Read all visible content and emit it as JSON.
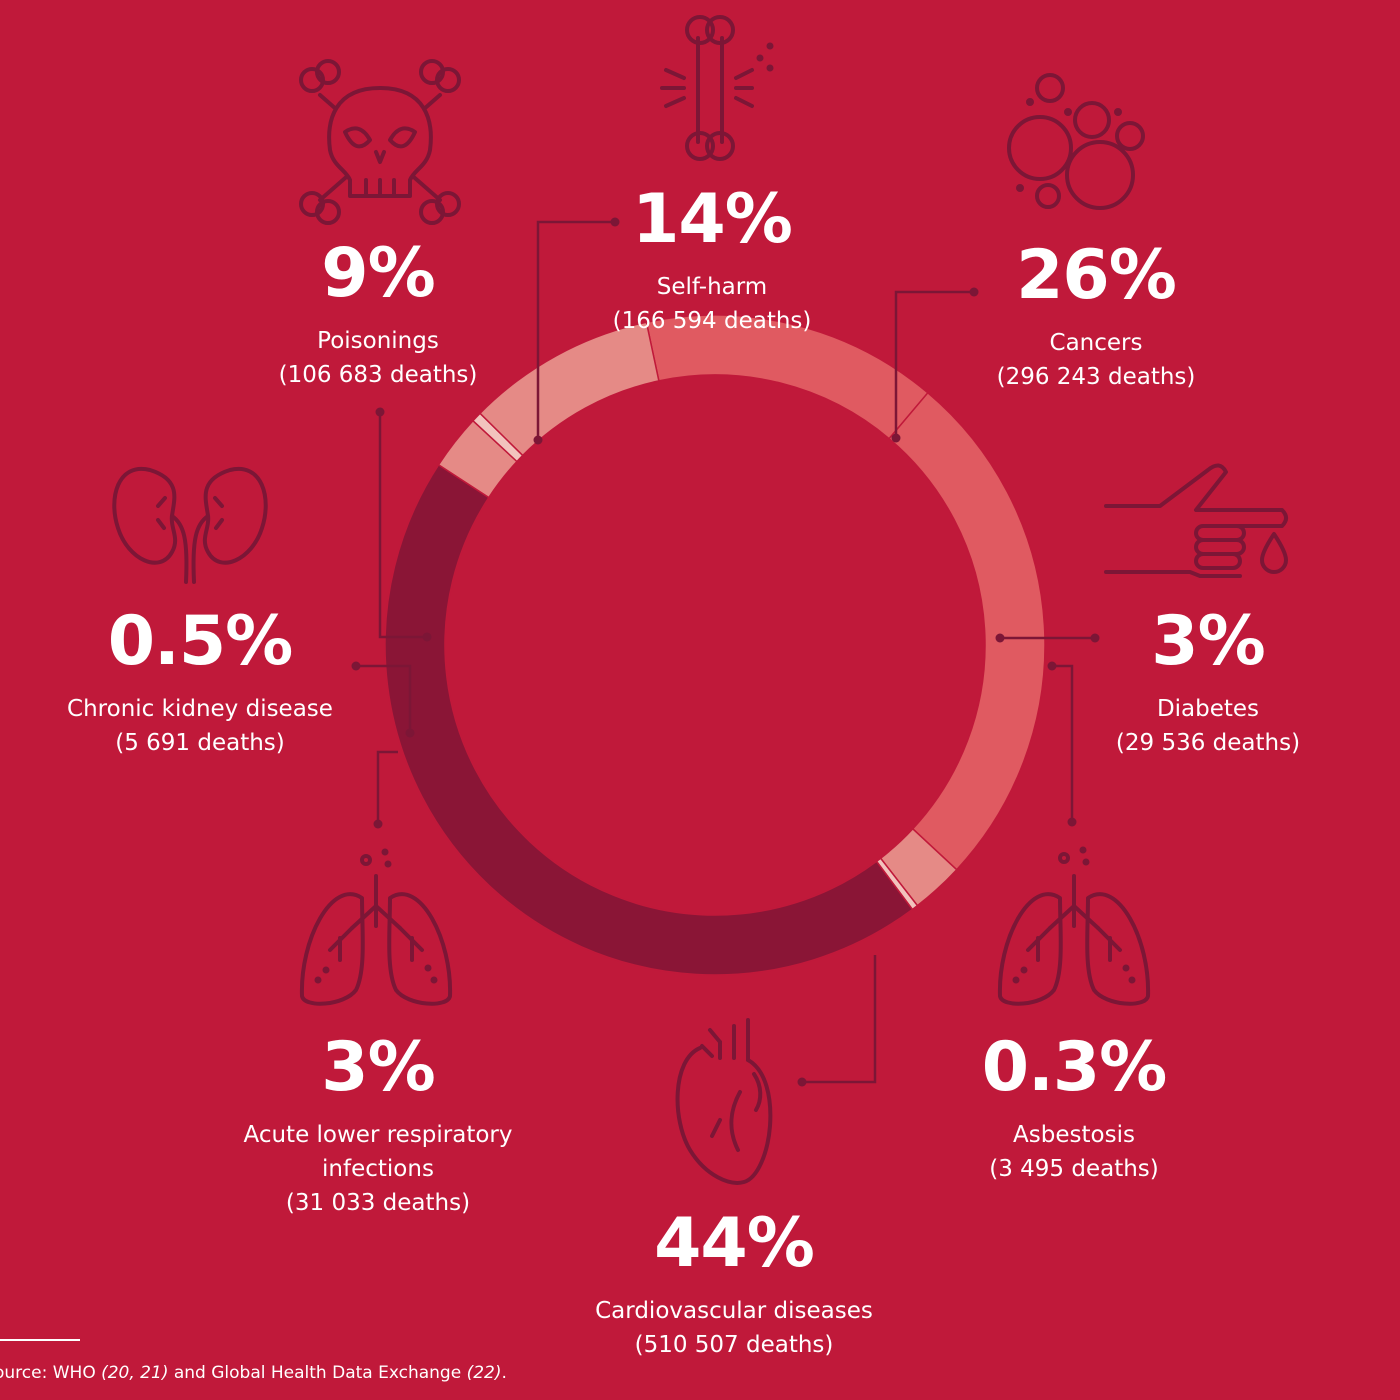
{
  "chart_data": {
    "type": "pie",
    "categories": [
      "Self-harm",
      "Cancers",
      "Diabetes",
      "Asbestosis",
      "Cardiovascular diseases",
      "Acute lower respiratory infections",
      "Chronic kidney disease",
      "Poisonings"
    ],
    "segments": [
      {
        "key": "self_harm",
        "name": "Self-harm",
        "percent_label": "14%",
        "deaths_label": "(166 594 deaths)",
        "value": 166594,
        "color": "#e05a61"
      },
      {
        "key": "cancers",
        "name": "Cancers",
        "percent_label": "26%",
        "deaths_label": "(296 243 deaths)",
        "value": 296243,
        "color": "#e05a61"
      },
      {
        "key": "diabetes",
        "name": "Diabetes",
        "percent_label": "3%",
        "deaths_label": "(29 536 deaths)",
        "value": 29536,
        "color": "#e58a86"
      },
      {
        "key": "asbestosis",
        "name": "Asbestosis",
        "percent_label": "0.3%",
        "deaths_label": "(3 495 deaths)",
        "value": 3495,
        "color": "#f2c3bd"
      },
      {
        "key": "cardiovascular",
        "name": "Cardiovascular diseases",
        "percent_label": "44%",
        "deaths_label": "(510 507 deaths)",
        "value": 510507,
        "color": "#8a1536"
      },
      {
        "key": "respiratory",
        "name": "Acute lower respiratory infections",
        "name_lines": [
          "Acute lower respiratory",
          "infections"
        ],
        "percent_label": "3%",
        "deaths_label": "(31 033 deaths)",
        "value": 31033,
        "color": "#e58a86"
      },
      {
        "key": "kidney",
        "name": "Chronic kidney disease",
        "percent_label": "0.5%",
        "deaths_label": "(5 691 deaths)",
        "value": 5691,
        "color": "#f2c3bd"
      },
      {
        "key": "poisonings",
        "name": "Poisonings",
        "percent_label": "9%",
        "deaths_label": "(106 683 deaths)",
        "value": 106683,
        "color": "#e58a86"
      }
    ],
    "colors": {
      "background": "#c0193a",
      "icon": "#7c1636",
      "text": "#ffffff"
    }
  },
  "icons": {
    "self_harm": "bone-icon",
    "cancers": "bubbles-icon",
    "diabetes": "finger-blood-drop-icon",
    "asbestosis": "lungs-icon",
    "cardiovascular": "heart-icon",
    "respiratory": "lungs-icon",
    "kidney": "kidneys-icon",
    "poisonings": "skull-crossbones-icon"
  },
  "source": {
    "prefix": "ource: WHO ",
    "ref1": "(20, 21)",
    "middle": " and Global Health Data Exchange ",
    "ref2": "(22)",
    "suffix": "."
  }
}
